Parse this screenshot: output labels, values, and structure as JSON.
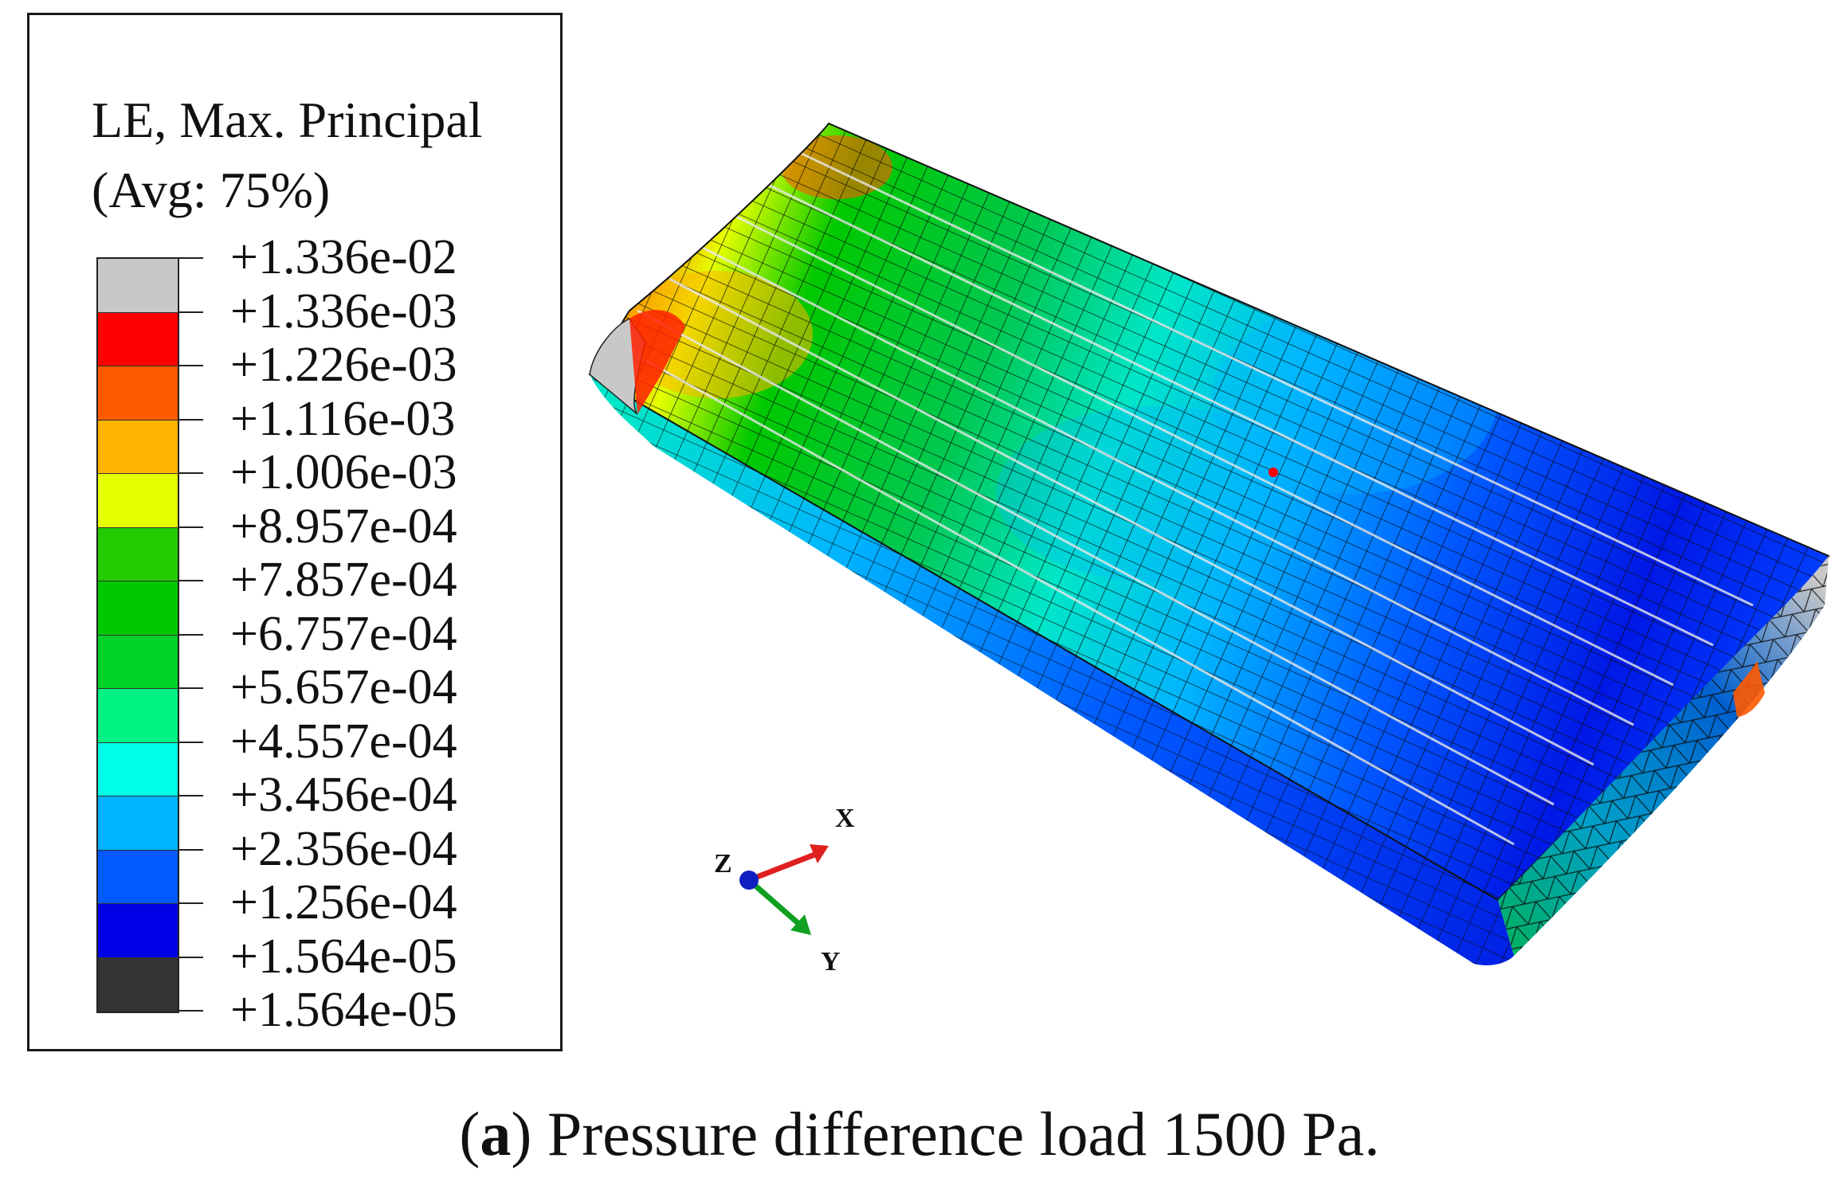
{
  "legend": {
    "title_line1": "LE, Max. Principal",
    "title_line2": "(Avg: 75%)",
    "values": [
      "+1.336e-02",
      "+1.336e-03",
      "+1.226e-03",
      "+1.116e-03",
      "+1.006e-03",
      "+8.957e-04",
      "+7.857e-04",
      "+6.757e-04",
      "+5.657e-04",
      "+4.557e-04",
      "+3.456e-04",
      "+2.356e-04",
      "+1.256e-04",
      "+1.564e-05",
      "+1.564e-05"
    ],
    "colors": [
      "#c8c8c8",
      "#ff0000",
      "#ff5a00",
      "#ffb400",
      "#e6ff00",
      "#22cc00",
      "#00c800",
      "#00d22a",
      "#00f282",
      "#00ffe6",
      "#00b4ff",
      "#005aff",
      "#0000e6",
      "#333333"
    ]
  },
  "triad": {
    "x_label": "X",
    "y_label": "Y",
    "z_label": "Z",
    "x_color": "#e02020",
    "y_color": "#10a020",
    "z_color": "#1020c0"
  },
  "caption": {
    "open": "(",
    "label": "a",
    "text": ") Pressure difference load 1500 Pa."
  }
}
